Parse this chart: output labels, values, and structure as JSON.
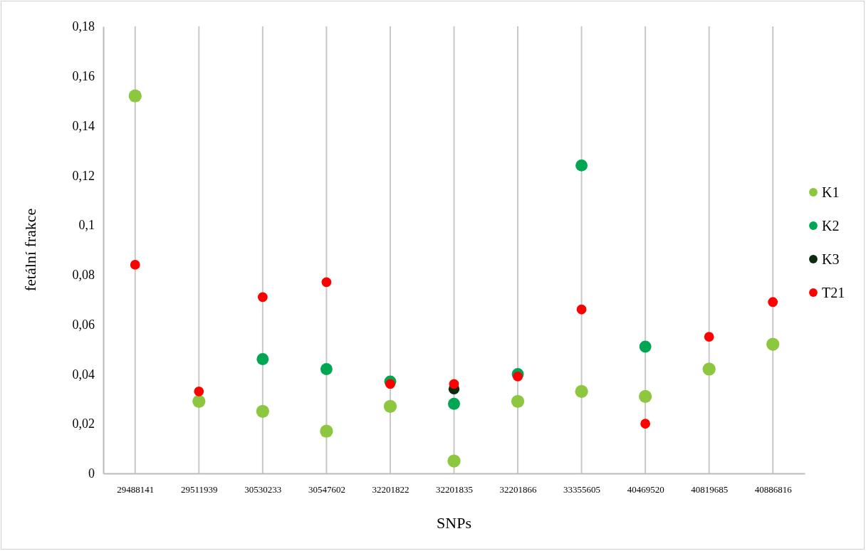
{
  "chart_data": {
    "type": "scatter",
    "xlabel": "SNPs",
    "ylabel": "fetální frakce",
    "categories": [
      "29488141",
      "29511939",
      "30530233",
      "30547602",
      "32201822",
      "32201835",
      "32201866",
      "33355605",
      "40469520",
      "40819685",
      "40886816"
    ],
    "series": [
      {
        "name": "K1",
        "color": "#8dc63f",
        "values": [
          0.152,
          0.029,
          0.025,
          0.017,
          0.027,
          0.005,
          0.029,
          0.033,
          0.031,
          0.042,
          0.052
        ]
      },
      {
        "name": "K2",
        "color": "#00a651",
        "values": [
          null,
          null,
          0.046,
          0.042,
          0.037,
          0.028,
          0.04,
          0.124,
          0.051,
          null,
          null
        ]
      },
      {
        "name": "K3",
        "color": "#0b2a10",
        "values": [
          null,
          null,
          null,
          null,
          null,
          0.034,
          null,
          null,
          null,
          null,
          null
        ]
      },
      {
        "name": "T21",
        "color": "#ff0000",
        "values": [
          0.084,
          0.033,
          0.071,
          0.077,
          0.036,
          0.036,
          0.039,
          0.066,
          0.02,
          0.055,
          0.069
        ]
      }
    ],
    "ylim": [
      0,
      0.18
    ],
    "yticks": [
      {
        "value": 0,
        "label": "0"
      },
      {
        "value": 0.02,
        "label": "0,02"
      },
      {
        "value": 0.04,
        "label": "0,04"
      },
      {
        "value": 0.06,
        "label": "0,06"
      },
      {
        "value": 0.08,
        "label": "0,08"
      },
      {
        "value": 0.1,
        "label": "0,1"
      },
      {
        "value": 0.12,
        "label": "0,12"
      },
      {
        "value": 0.14,
        "label": "0,14"
      },
      {
        "value": 0.16,
        "label": "0,16"
      },
      {
        "value": 0.18,
        "label": "0,18"
      }
    ],
    "grid": "x",
    "legend": "right",
    "marker": "circle"
  }
}
